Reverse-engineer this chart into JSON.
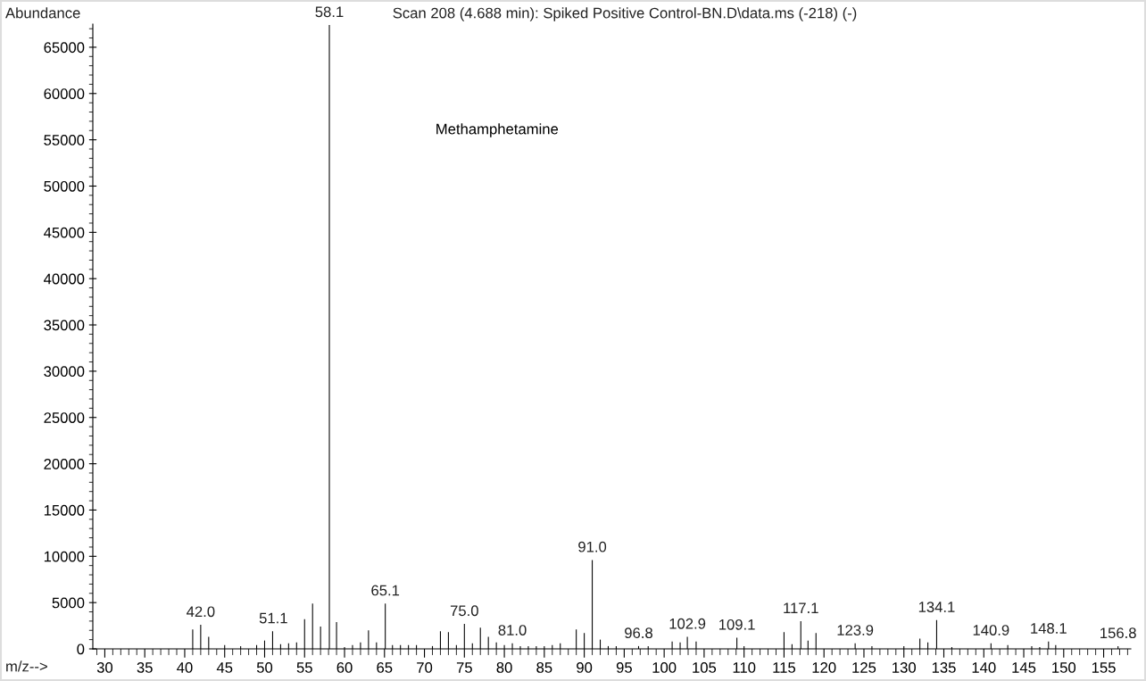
{
  "chart_data": {
    "type": "bar",
    "title": "Scan 208 (4.688 min): Spiked Positive Control-BN.D\\data.ms (-218) (-)",
    "xlabel": "m/z-->",
    "ylabel": "Abundance",
    "x": [
      41,
      42,
      43,
      45,
      47,
      49,
      50,
      51,
      52,
      53,
      54,
      55,
      56,
      57,
      58.1,
      59,
      60,
      61,
      62,
      63,
      64,
      65.1,
      66,
      67,
      68,
      69,
      71,
      72,
      73,
      74,
      75,
      76,
      77,
      78,
      79,
      80,
      81,
      82,
      83,
      84,
      85,
      86,
      87,
      89,
      90,
      91,
      92,
      93,
      94,
      96.8,
      98,
      101,
      102,
      102.9,
      104,
      109.1,
      110,
      115,
      116,
      117.1,
      118,
      119,
      123.9,
      126,
      130,
      132,
      133,
      134.1,
      136,
      140.9,
      143,
      146,
      147,
      148.1,
      149,
      156.8
    ],
    "values": [
      2100,
      2600,
      1300,
      400,
      300,
      400,
      900,
      1900,
      500,
      600,
      700,
      3200,
      4900,
      2400,
      67400,
      2900,
      200,
      400,
      700,
      2000,
      700,
      4900,
      400,
      400,
      400,
      400,
      300,
      1900,
      1800,
      400,
      2700,
      600,
      2300,
      1300,
      700,
      400,
      600,
      300,
      300,
      300,
      300,
      400,
      600,
      2100,
      1700,
      9600,
      1000,
      300,
      300,
      300,
      300,
      800,
      700,
      1300,
      800,
      1200,
      300,
      1800,
      500,
      3000,
      900,
      1700,
      600,
      300,
      300,
      1100,
      700,
      3100,
      200,
      600,
      400,
      300,
      200,
      800,
      400,
      300
    ],
    "color": "#000000",
    "annotations": [
      {
        "text": "42.0",
        "x": 42,
        "y": 2600
      },
      {
        "text": "51.1",
        "x": 51.1,
        "y": 1900
      },
      {
        "text": "58.1",
        "x": 58.1,
        "y": 67400
      },
      {
        "text": "65.1",
        "x": 65.1,
        "y": 4900
      },
      {
        "text": "75.0",
        "x": 75,
        "y": 2700
      },
      {
        "text": "81.0",
        "x": 81,
        "y": 600
      },
      {
        "text": "91.0",
        "x": 91,
        "y": 9600
      },
      {
        "text": "96.8",
        "x": 96.8,
        "y": 300
      },
      {
        "text": "102.9",
        "x": 102.9,
        "y": 1300
      },
      {
        "text": "109.1",
        "x": 109.1,
        "y": 1200
      },
      {
        "text": "117.1",
        "x": 117.1,
        "y": 3000
      },
      {
        "text": "123.9",
        "x": 123.9,
        "y": 600
      },
      {
        "text": "134.1",
        "x": 134.1,
        "y": 3100
      },
      {
        "text": "140.9",
        "x": 140.9,
        "y": 600
      },
      {
        "text": "148.1",
        "x": 148.1,
        "y": 800
      },
      {
        "text": "156.8",
        "x": 156.8,
        "y": 300
      },
      "Methamphetamine"
    ],
    "xlim": [
      28.5,
      158.4
    ],
    "ylim": [
      0,
      67500
    ],
    "xticks": [
      30,
      35,
      40,
      45,
      50,
      55,
      60,
      65,
      70,
      75,
      80,
      85,
      90,
      95,
      100,
      105,
      110,
      115,
      120,
      125,
      130,
      135,
      140,
      145,
      150,
      155
    ],
    "yticks": [
      0,
      5000,
      10000,
      15000,
      20000,
      25000,
      30000,
      35000,
      40000,
      45000,
      50000,
      55000,
      60000,
      65000
    ],
    "grid": false,
    "legend": false
  }
}
